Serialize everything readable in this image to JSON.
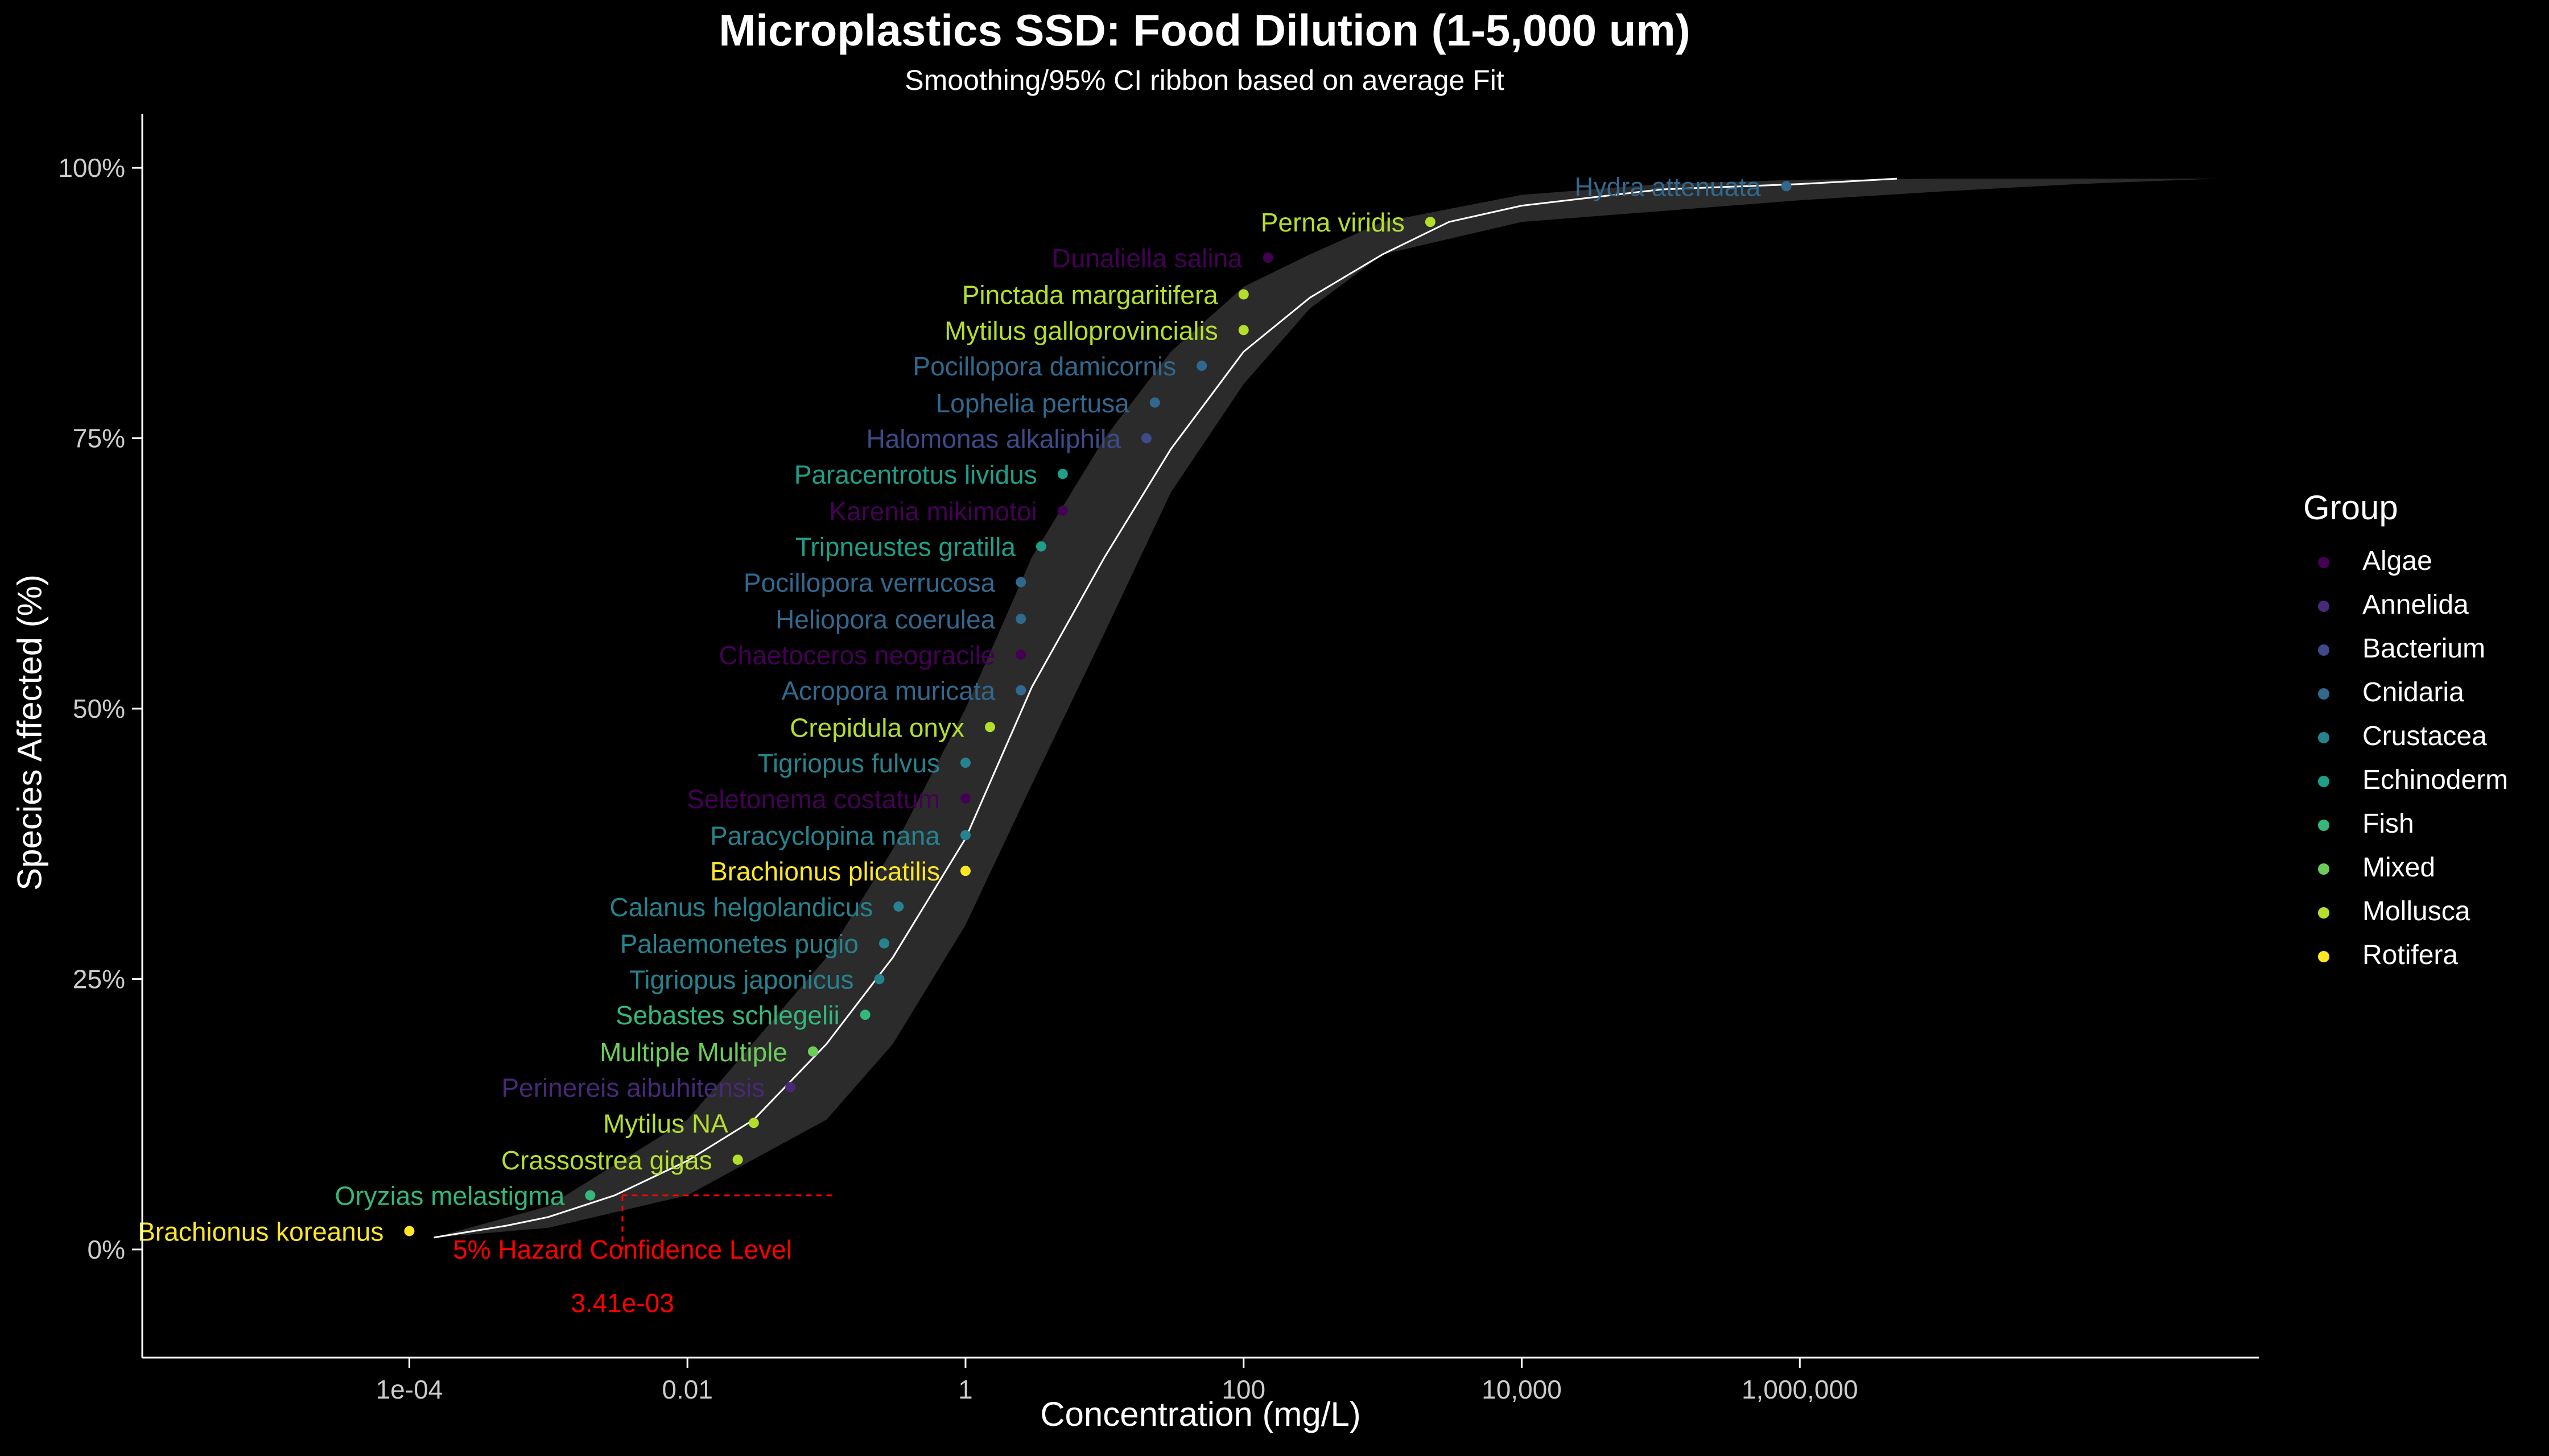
{
  "chart_data": {
    "type": "scatter",
    "title": "Microplastics SSD: Food Dilution (1-5,000 um)",
    "subtitle": "Smoothing/95% CI ribbon based on average Fit",
    "xlabel": "Concentration (mg/L)",
    "ylabel": "Species Affected (%)",
    "x_scale": "log10",
    "xlim": [
      1.2e-06,
      2000000000
    ],
    "ylim": [
      -0.1,
      1.05
    ],
    "x_ticks": [
      {
        "value": 0.0001,
        "label": "1e-04"
      },
      {
        "value": 0.01,
        "label": "0.01"
      },
      {
        "value": 1,
        "label": "1"
      },
      {
        "value": 100,
        "label": "100"
      },
      {
        "value": 10000,
        "label": "10,000"
      },
      {
        "value": 1000000,
        "label": "1,000,000"
      }
    ],
    "y_ticks": [
      {
        "value": 0,
        "label": "0%"
      },
      {
        "value": 0.25,
        "label": "25%"
      },
      {
        "value": 0.5,
        "label": "50%"
      },
      {
        "value": 0.75,
        "label": "75%"
      },
      {
        "value": 1,
        "label": "100%"
      }
    ],
    "grid": false,
    "legend": {
      "title": "Group",
      "position": "right",
      "items": [
        {
          "name": "Algae",
          "color": "#440154"
        },
        {
          "name": "Annelida",
          "color": "#482878"
        },
        {
          "name": "Bacterium",
          "color": "#3E4A89"
        },
        {
          "name": "Cnidaria",
          "color": "#31688E"
        },
        {
          "name": "Crustacea",
          "color": "#26828E"
        },
        {
          "name": "Echinoderm",
          "color": "#1F9E89"
        },
        {
          "name": "Fish",
          "color": "#35B779"
        },
        {
          "name": "Mixed",
          "color": "#6DCD59"
        },
        {
          "name": "Mollusca",
          "color": "#B4DE2C"
        },
        {
          "name": "Rotifera",
          "color": "#FDE725"
        }
      ]
    },
    "points": [
      {
        "label": "Brachionus koreanus",
        "group": "Rotifera",
        "x": 0.0001,
        "y": 0.017
      },
      {
        "label": "Oryzias melastigma",
        "group": "Fish",
        "x": 0.002,
        "y": 0.05
      },
      {
        "label": "Crassostrea gigas",
        "group": "Mollusca",
        "x": 0.023,
        "y": 0.083
      },
      {
        "label": "Mytilus NA",
        "group": "Mollusca",
        "x": 0.03,
        "y": 0.117
      },
      {
        "label": "Perinereis aibuhitensis",
        "group": "Annelida",
        "x": 0.055,
        "y": 0.15
      },
      {
        "label": "Multiple Multiple",
        "group": "Mixed",
        "x": 0.08,
        "y": 0.183
      },
      {
        "label": "Sebastes schlegelii",
        "group": "Fish",
        "x": 0.19,
        "y": 0.217
      },
      {
        "label": "Tigriopus japonicus",
        "group": "Crustacea",
        "x": 0.24,
        "y": 0.25
      },
      {
        "label": "Palaemonetes pugio",
        "group": "Crustacea",
        "x": 0.26,
        "y": 0.283
      },
      {
        "label": "Calanus helgolandicus",
        "group": "Crustacea",
        "x": 0.33,
        "y": 0.317
      },
      {
        "label": "Brachionus plicatilis",
        "group": "Rotifera",
        "x": 1.0,
        "y": 0.35
      },
      {
        "label": "Paracyclopina nana",
        "group": "Crustacea",
        "x": 1.0,
        "y": 0.383
      },
      {
        "label": "Seletonema costatum",
        "group": "Algae",
        "x": 1.0,
        "y": 0.417
      },
      {
        "label": "Tigriopus fulvus",
        "group": "Crustacea",
        "x": 1.0,
        "y": 0.45
      },
      {
        "label": "Crepidula onyx",
        "group": "Mollusca",
        "x": 1.5,
        "y": 0.483
      },
      {
        "label": "Acropora muricata",
        "group": "Cnidaria",
        "x": 2.5,
        "y": 0.517
      },
      {
        "label": "Chaetoceros neogracile",
        "group": "Algae",
        "x": 2.5,
        "y": 0.55
      },
      {
        "label": "Heliopora coerulea",
        "group": "Cnidaria",
        "x": 2.5,
        "y": 0.583
      },
      {
        "label": "Pocillopora verrucosa",
        "group": "Cnidaria",
        "x": 2.5,
        "y": 0.617
      },
      {
        "label": "Tripneustes gratilla",
        "group": "Echinoderm",
        "x": 3.5,
        "y": 0.65
      },
      {
        "label": "Karenia mikimotoi",
        "group": "Algae",
        "x": 5,
        "y": 0.683
      },
      {
        "label": "Paracentrotus lividus",
        "group": "Echinoderm",
        "x": 5,
        "y": 0.717
      },
      {
        "label": "Halomonas alkaliphila",
        "group": "Bacterium",
        "x": 20,
        "y": 0.75
      },
      {
        "label": "Lophelia pertusa",
        "group": "Cnidaria",
        "x": 23,
        "y": 0.783
      },
      {
        "label": "Pocillopora damicornis",
        "group": "Cnidaria",
        "x": 50,
        "y": 0.817
      },
      {
        "label": "Mytilus galloprovincialis",
        "group": "Mollusca",
        "x": 100,
        "y": 0.85
      },
      {
        "label": "Pinctada margaritifera",
        "group": "Mollusca",
        "x": 100,
        "y": 0.883
      },
      {
        "label": "Dunaliella salina",
        "group": "Algae",
        "x": 150,
        "y": 0.917
      },
      {
        "label": "Perna viridis",
        "group": "Mollusca",
        "x": 2200,
        "y": 0.95
      },
      {
        "label": "Hydra attenuata",
        "group": "Cnidaria",
        "x": 800000,
        "y": 0.983
      }
    ],
    "fit_curve": {
      "color": "#FFFFFF",
      "points": [
        [
          0.00015,
          0.011
        ],
        [
          0.0005,
          0.022
        ],
        [
          0.001,
          0.03
        ],
        [
          0.003,
          0.05
        ],
        [
          0.01,
          0.082
        ],
        [
          0.03,
          0.12
        ],
        [
          0.1,
          0.19
        ],
        [
          0.3,
          0.27
        ],
        [
          1,
          0.38
        ],
        [
          3,
          0.52
        ],
        [
          10,
          0.64
        ],
        [
          30,
          0.74
        ],
        [
          100,
          0.83
        ],
        [
          300,
          0.88
        ],
        [
          1000,
          0.92
        ],
        [
          3000,
          0.95
        ],
        [
          10000,
          0.965
        ],
        [
          100000,
          0.98
        ],
        [
          1000000,
          0.985
        ],
        [
          5000000,
          0.99
        ]
      ]
    },
    "ci_ribbon": {
      "color": "#2B2B2B",
      "upper": [
        [
          0.00015,
          0.011
        ],
        [
          0.001,
          0.04
        ],
        [
          0.01,
          0.12
        ],
        [
          0.1,
          0.27
        ],
        [
          0.3,
          0.37
        ],
        [
          1,
          0.5
        ],
        [
          3,
          0.64
        ],
        [
          10,
          0.75
        ],
        [
          30,
          0.83
        ],
        [
          100,
          0.89
        ],
        [
          300,
          0.92
        ],
        [
          1000,
          0.95
        ],
        [
          10000,
          0.975
        ],
        [
          100000,
          0.985
        ],
        [
          1000000,
          0.989
        ],
        [
          10000000,
          0.99
        ],
        [
          1000000000,
          0.99
        ]
      ],
      "lower": [
        [
          1000000000,
          0.99
        ],
        [
          100000000,
          0.985
        ],
        [
          10000000,
          0.978
        ],
        [
          1000000,
          0.97
        ],
        [
          100000,
          0.96
        ],
        [
          10000,
          0.95
        ],
        [
          1000,
          0.92
        ],
        [
          300,
          0.87
        ],
        [
          100,
          0.8
        ],
        [
          30,
          0.7
        ],
        [
          10,
          0.57
        ],
        [
          3,
          0.43
        ],
        [
          1,
          0.3
        ],
        [
          0.3,
          0.19
        ],
        [
          0.1,
          0.12
        ],
        [
          0.01,
          0.05
        ],
        [
          0.001,
          0.02
        ],
        [
          0.00015,
          0.011
        ]
      ]
    },
    "annotations": {
      "hazard_label": "5% Hazard Confidence Level",
      "hazard_value": "3.41e-03",
      "hazard_x": 0.00341,
      "hazard_y": 0.05,
      "color": "#FF0000"
    }
  }
}
